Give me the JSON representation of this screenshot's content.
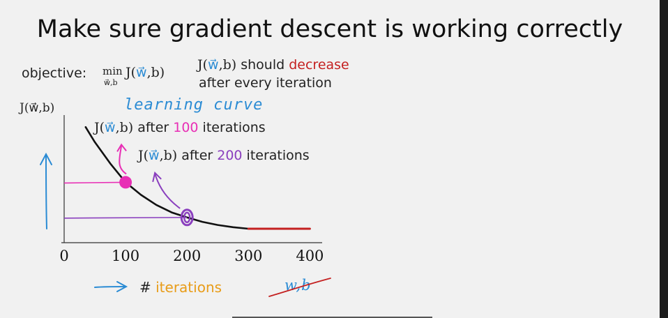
{
  "slide": {
    "title": "Make sure gradient descent is working correctly",
    "objective": {
      "label": "objective:",
      "min_word": "min",
      "min_sub": "w⃗,b",
      "func": "J(",
      "w": "w⃗",
      "rest": ",b)"
    },
    "note": {
      "func": "J(",
      "w": "w⃗",
      "rest": ",b)",
      "should": " should ",
      "decrease": "decrease",
      "line2": "after every iteration"
    },
    "learning_curve_label": "learning curve",
    "annotation_100": {
      "pre": " after ",
      "num": "100",
      "post": " iterations"
    },
    "annotation_200": {
      "pre": " after ",
      "num": "200",
      "post": " iterations"
    },
    "xlabel": {
      "hash": "# ",
      "word": "iterations"
    },
    "crossed_label": "w,b",
    "colors": {
      "curve": "#111111",
      "converged": "#c42020",
      "marker_100": "#e82fb5",
      "marker_200": "#8a3fbe",
      "arrow": "#2a8bd4",
      "axis": "#333333"
    }
  },
  "chart_data": {
    "type": "line",
    "title": "learning curve",
    "ylabel": "J(w⃗,b)",
    "xlabel": "# iterations",
    "xlim": [
      0,
      420
    ],
    "ylim": [
      0,
      1
    ],
    "x_ticks": [
      0,
      100,
      200,
      300,
      400
    ],
    "x_tick_labels": [
      "0",
      "100",
      "200",
      "300",
      "400"
    ],
    "grid": false,
    "series": [
      {
        "name": "J(w⃗,b)",
        "x": [
          35,
          50,
          75,
          100,
          125,
          150,
          175,
          200,
          225,
          250,
          275,
          300
        ],
        "y": [
          0.81,
          0.69,
          0.52,
          0.37,
          0.27,
          0.19,
          0.13,
          0.09,
          0.055,
          0.03,
          0.012,
          0.0
        ]
      },
      {
        "x": [
          300,
          320,
          340,
          360,
          380,
          400
        ],
        "y": [
          0.0,
          0.0,
          0.0,
          0.0,
          0.0,
          0.0
        ]
      }
    ],
    "markers": [
      {
        "x": 100,
        "y": 0.37
      },
      {
        "x": 200,
        "y": 0.09
      }
    ]
  }
}
